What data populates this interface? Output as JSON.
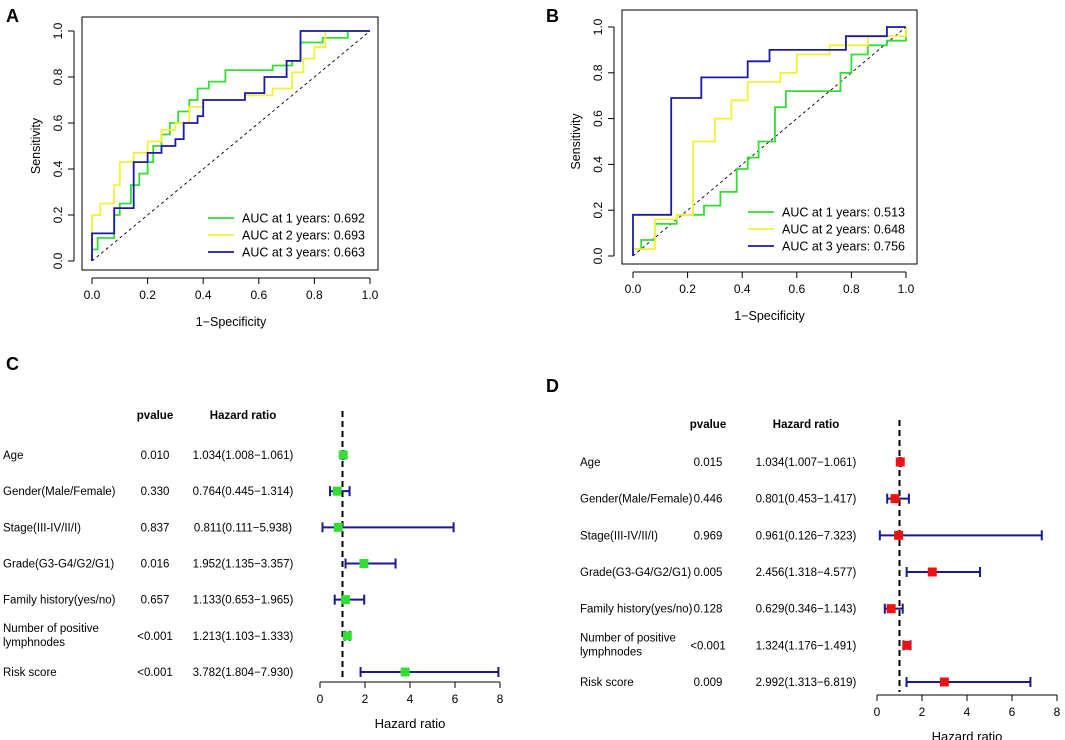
{
  "panel_letters": [
    "A",
    "B",
    "C",
    "D"
  ],
  "colors": {
    "y1": "#33dd33",
    "y2": "#f2f230",
    "y3": "#1a1aa8",
    "green_marker": "#33dd33",
    "red_marker": "#ee1111",
    "ci_line": "#1a1a8c"
  },
  "chart_data": [
    {
      "id": "A",
      "type": "line",
      "title": "",
      "xlabel": "1−Specificity",
      "ylabel": "Sensitivity",
      "xlim": [
        0,
        1
      ],
      "ylim": [
        0,
        1
      ],
      "xticks": [
        "0.0",
        "0.2",
        "0.4",
        "0.6",
        "0.8",
        "1.0"
      ],
      "yticks": [
        "0.0",
        "0.2",
        "0.4",
        "0.6",
        "0.8",
        "1.0"
      ],
      "diagonal": true,
      "legend_position": "bottom-right",
      "series": [
        {
          "name": "AUC at 1 years: 0.692",
          "color": "#33dd33",
          "points": [
            [
              0,
              0
            ],
            [
              0,
              0.05
            ],
            [
              0.02,
              0.05
            ],
            [
              0.02,
              0.1
            ],
            [
              0.08,
              0.1
            ],
            [
              0.08,
              0.2
            ],
            [
              0.1,
              0.2
            ],
            [
              0.1,
              0.25
            ],
            [
              0.14,
              0.25
            ],
            [
              0.14,
              0.33
            ],
            [
              0.17,
              0.33
            ],
            [
              0.17,
              0.38
            ],
            [
              0.2,
              0.38
            ],
            [
              0.2,
              0.43
            ],
            [
              0.22,
              0.43
            ],
            [
              0.22,
              0.5
            ],
            [
              0.25,
              0.5
            ],
            [
              0.25,
              0.55
            ],
            [
              0.28,
              0.55
            ],
            [
              0.28,
              0.6
            ],
            [
              0.31,
              0.6
            ],
            [
              0.31,
              0.65
            ],
            [
              0.35,
              0.65
            ],
            [
              0.35,
              0.7
            ],
            [
              0.38,
              0.7
            ],
            [
              0.38,
              0.75
            ],
            [
              0.42,
              0.75
            ],
            [
              0.42,
              0.78
            ],
            [
              0.48,
              0.78
            ],
            [
              0.48,
              0.83
            ],
            [
              0.65,
              0.83
            ],
            [
              0.65,
              0.85
            ],
            [
              0.72,
              0.85
            ],
            [
              0.72,
              0.87
            ],
            [
              0.75,
              0.87
            ],
            [
              0.75,
              0.95
            ],
            [
              0.83,
              0.95
            ],
            [
              0.83,
              0.97
            ],
            [
              0.92,
              0.97
            ],
            [
              0.92,
              1.0
            ],
            [
              1,
              1
            ]
          ]
        },
        {
          "name": "AUC at 2 years: 0.693",
          "color": "#f2f230",
          "points": [
            [
              0,
              0
            ],
            [
              0,
              0.2
            ],
            [
              0.03,
              0.2
            ],
            [
              0.03,
              0.25
            ],
            [
              0.08,
              0.25
            ],
            [
              0.08,
              0.33
            ],
            [
              0.1,
              0.33
            ],
            [
              0.1,
              0.43
            ],
            [
              0.15,
              0.43
            ],
            [
              0.15,
              0.47
            ],
            [
              0.2,
              0.47
            ],
            [
              0.2,
              0.52
            ],
            [
              0.25,
              0.52
            ],
            [
              0.25,
              0.57
            ],
            [
              0.3,
              0.57
            ],
            [
              0.3,
              0.6
            ],
            [
              0.35,
              0.6
            ],
            [
              0.35,
              0.67
            ],
            [
              0.4,
              0.67
            ],
            [
              0.4,
              0.7
            ],
            [
              0.55,
              0.7
            ],
            [
              0.55,
              0.72
            ],
            [
              0.65,
              0.72
            ],
            [
              0.65,
              0.75
            ],
            [
              0.72,
              0.75
            ],
            [
              0.72,
              0.82
            ],
            [
              0.76,
              0.82
            ],
            [
              0.76,
              0.88
            ],
            [
              0.8,
              0.88
            ],
            [
              0.8,
              0.93
            ],
            [
              0.84,
              0.93
            ],
            [
              0.84,
              1.0
            ],
            [
              1,
              1
            ]
          ]
        },
        {
          "name": "AUC at 3 years: 0.663",
          "color": "#1a1aa8",
          "points": [
            [
              0,
              0
            ],
            [
              0,
              0.12
            ],
            [
              0.08,
              0.12
            ],
            [
              0.08,
              0.23
            ],
            [
              0.15,
              0.23
            ],
            [
              0.15,
              0.43
            ],
            [
              0.2,
              0.43
            ],
            [
              0.2,
              0.47
            ],
            [
              0.25,
              0.47
            ],
            [
              0.25,
              0.5
            ],
            [
              0.3,
              0.5
            ],
            [
              0.3,
              0.53
            ],
            [
              0.33,
              0.53
            ],
            [
              0.33,
              0.6
            ],
            [
              0.38,
              0.6
            ],
            [
              0.38,
              0.63
            ],
            [
              0.4,
              0.63
            ],
            [
              0.4,
              0.7
            ],
            [
              0.55,
              0.7
            ],
            [
              0.55,
              0.73
            ],
            [
              0.62,
              0.73
            ],
            [
              0.62,
              0.8
            ],
            [
              0.7,
              0.8
            ],
            [
              0.7,
              0.87
            ],
            [
              0.75,
              0.87
            ],
            [
              0.75,
              1.0
            ],
            [
              1,
              1
            ]
          ]
        }
      ]
    },
    {
      "id": "B",
      "type": "line",
      "title": "",
      "xlabel": "1−Specificity",
      "ylabel": "Sensitivity",
      "xlim": [
        0,
        1
      ],
      "ylim": [
        0,
        1
      ],
      "xticks": [
        "0.0",
        "0.2",
        "0.4",
        "0.6",
        "0.8",
        "1.0"
      ],
      "yticks": [
        "0.0",
        "0.2",
        "0.4",
        "0.6",
        "0.8",
        "1.0"
      ],
      "diagonal": true,
      "legend_position": "bottom-right",
      "series": [
        {
          "name": "AUC at 1 years: 0.513",
          "color": "#33dd33",
          "points": [
            [
              0,
              0
            ],
            [
              0,
              0.03
            ],
            [
              0.03,
              0.03
            ],
            [
              0.03,
              0.07
            ],
            [
              0.08,
              0.07
            ],
            [
              0.08,
              0.14
            ],
            [
              0.16,
              0.14
            ],
            [
              0.16,
              0.18
            ],
            [
              0.26,
              0.18
            ],
            [
              0.26,
              0.22
            ],
            [
              0.32,
              0.22
            ],
            [
              0.32,
              0.28
            ],
            [
              0.38,
              0.28
            ],
            [
              0.38,
              0.38
            ],
            [
              0.42,
              0.38
            ],
            [
              0.42,
              0.43
            ],
            [
              0.46,
              0.43
            ],
            [
              0.46,
              0.5
            ],
            [
              0.52,
              0.5
            ],
            [
              0.52,
              0.65
            ],
            [
              0.56,
              0.65
            ],
            [
              0.56,
              0.72
            ],
            [
              0.76,
              0.72
            ],
            [
              0.76,
              0.8
            ],
            [
              0.8,
              0.8
            ],
            [
              0.8,
              0.88
            ],
            [
              0.86,
              0.88
            ],
            [
              0.86,
              0.92
            ],
            [
              0.93,
              0.92
            ],
            [
              0.93,
              0.94
            ],
            [
              1,
              0.94
            ],
            [
              1,
              1
            ]
          ]
        },
        {
          "name": "AUC at 2 years: 0.648",
          "color": "#f2f230",
          "points": [
            [
              0,
              0
            ],
            [
              0,
              0.03
            ],
            [
              0.08,
              0.03
            ],
            [
              0.08,
              0.16
            ],
            [
              0.16,
              0.16
            ],
            [
              0.16,
              0.18
            ],
            [
              0.22,
              0.18
            ],
            [
              0.22,
              0.5
            ],
            [
              0.3,
              0.5
            ],
            [
              0.3,
              0.6
            ],
            [
              0.36,
              0.6
            ],
            [
              0.36,
              0.68
            ],
            [
              0.42,
              0.68
            ],
            [
              0.42,
              0.76
            ],
            [
              0.54,
              0.76
            ],
            [
              0.54,
              0.8
            ],
            [
              0.6,
              0.8
            ],
            [
              0.6,
              0.88
            ],
            [
              0.72,
              0.88
            ],
            [
              0.72,
              0.92
            ],
            [
              0.86,
              0.92
            ],
            [
              0.86,
              0.96
            ],
            [
              1,
              0.96
            ],
            [
              1,
              1
            ]
          ]
        },
        {
          "name": "AUC at 3 years: 0.756",
          "color": "#1a1aa8",
          "points": [
            [
              0,
              0
            ],
            [
              0,
              0.18
            ],
            [
              0.14,
              0.18
            ],
            [
              0.14,
              0.69
            ],
            [
              0.25,
              0.69
            ],
            [
              0.25,
              0.78
            ],
            [
              0.42,
              0.78
            ],
            [
              0.42,
              0.85
            ],
            [
              0.5,
              0.85
            ],
            [
              0.5,
              0.9
            ],
            [
              0.78,
              0.9
            ],
            [
              0.78,
              0.96
            ],
            [
              0.93,
              0.96
            ],
            [
              0.93,
              1.0
            ],
            [
              1,
              1
            ]
          ]
        }
      ]
    },
    {
      "id": "C",
      "type": "forest",
      "title": "",
      "header_pvalue": "pvalue",
      "header_hr": "Hazard ratio",
      "xlabel": "Hazard ratio",
      "xlim": [
        0,
        8
      ],
      "xticks": [
        "0",
        "2",
        "4",
        "6",
        "8"
      ],
      "reference": 1,
      "marker_color": "#33dd33",
      "rows": [
        {
          "label": "Age",
          "pvalue": "0.010",
          "hr_text": "1.034(1.008−1.061)",
          "hr": 1.034,
          "lo": 1.008,
          "hi": 1.061
        },
        {
          "label": "Gender(Male/Female)",
          "pvalue": "0.330",
          "hr_text": "0.764(0.445−1.314)",
          "hr": 0.764,
          "lo": 0.445,
          "hi": 1.314
        },
        {
          "label": "Stage(III-IV/II/I)",
          "pvalue": "0.837",
          "hr_text": "0.811(0.111−5.938)",
          "hr": 0.811,
          "lo": 0.111,
          "hi": 5.938
        },
        {
          "label": "Grade(G3-G4/G2/G1)",
          "pvalue": "0.016",
          "hr_text": "1.952(1.135−3.357)",
          "hr": 1.952,
          "lo": 1.135,
          "hi": 3.357
        },
        {
          "label": "Family history(yes/no)",
          "pvalue": "0.657",
          "hr_text": "1.133(0.653−1.965)",
          "hr": 1.133,
          "lo": 0.653,
          "hi": 1.965
        },
        {
          "label": "Number of positive",
          "label2": "lymphnodes",
          "pvalue": "<0.001",
          "hr_text": "1.213(1.103−1.333)",
          "hr": 1.213,
          "lo": 1.103,
          "hi": 1.333
        },
        {
          "label": "Risk score",
          "pvalue": "<0.001",
          "hr_text": "3.782(1.804−7.930)",
          "hr": 3.782,
          "lo": 1.804,
          "hi": 7.93
        }
      ]
    },
    {
      "id": "D",
      "type": "forest",
      "title": "",
      "header_pvalue": "pvalue",
      "header_hr": "Hazard ratio",
      "xlabel": "Hazard ratio",
      "xlim": [
        0,
        8
      ],
      "xticks": [
        "0",
        "2",
        "4",
        "6",
        "8"
      ],
      "reference": 1,
      "marker_color": "#ee1111",
      "rows": [
        {
          "label": "Age",
          "pvalue": "0.015",
          "hr_text": "1.034(1.007−1.061)",
          "hr": 1.034,
          "lo": 1.007,
          "hi": 1.061
        },
        {
          "label": "Gender(Male/Female)",
          "pvalue": "0.446",
          "hr_text": "0.801(0.453−1.417)",
          "hr": 0.801,
          "lo": 0.453,
          "hi": 1.417
        },
        {
          "label": "Stage(III-IV/II/I)",
          "pvalue": "0.969",
          "hr_text": "0.961(0.126−7.323)",
          "hr": 0.961,
          "lo": 0.126,
          "hi": 7.323
        },
        {
          "label": "Grade(G3-G4/G2/G1)",
          "pvalue": "0.005",
          "hr_text": "2.456(1.318−4.577)",
          "hr": 2.456,
          "lo": 1.318,
          "hi": 4.577
        },
        {
          "label": "Family history(yes/no)",
          "pvalue": "0.128",
          "hr_text": "0.629(0.346−1.143)",
          "hr": 0.629,
          "lo": 0.346,
          "hi": 1.143
        },
        {
          "label": "Number of positive",
          "label2": "lymphnodes",
          "pvalue": "<0.001",
          "hr_text": "1.324(1.176−1.491)",
          "hr": 1.324,
          "lo": 1.176,
          "hi": 1.491
        },
        {
          "label": "Risk score",
          "pvalue": "0.009",
          "hr_text": "2.992(1.313−6.819)",
          "hr": 2.992,
          "lo": 1.313,
          "hi": 6.819
        }
      ]
    }
  ]
}
